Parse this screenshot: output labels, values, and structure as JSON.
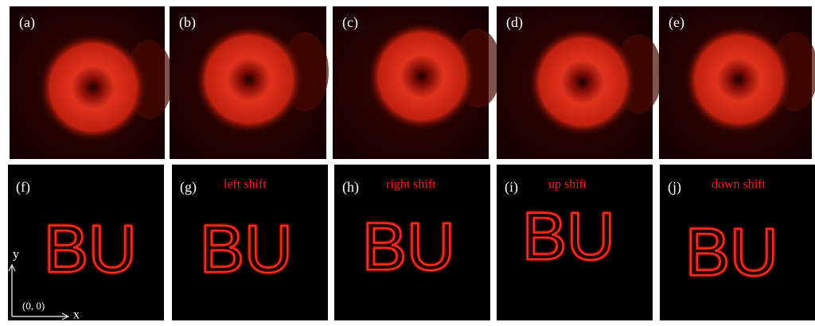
{
  "top_panels": [
    {
      "label": "(a)"
    },
    {
      "label": "(b)"
    },
    {
      "label": "(c)"
    },
    {
      "label": "(d)"
    },
    {
      "label": "(e)"
    }
  ],
  "bottom_panels": [
    {
      "label": "(f)"
    },
    {
      "label": "(g)",
      "caption": "left shift"
    },
    {
      "label": "(h)",
      "caption": "right shift"
    },
    {
      "label": "(i)",
      "caption": "up shift"
    },
    {
      "label": "(j)",
      "caption": "down shift"
    }
  ],
  "image_text": "BU",
  "axes": {
    "y": "y",
    "x": "x",
    "origin": "(0, 0)"
  }
}
